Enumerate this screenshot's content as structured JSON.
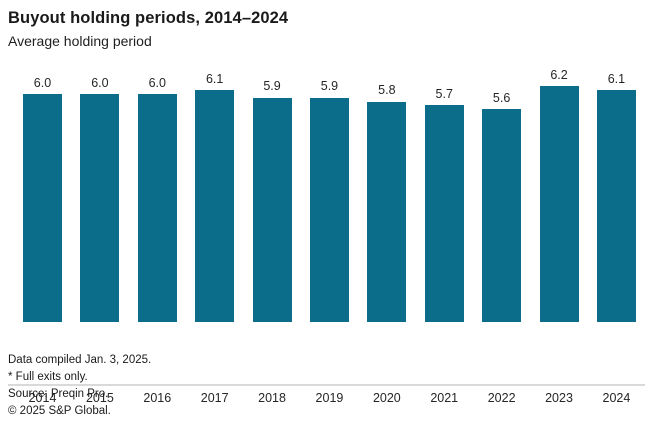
{
  "header": {
    "title": "Buyout holding periods, 2014–2024",
    "subtitle": "Average holding period"
  },
  "chart_data": {
    "type": "bar",
    "title": "Buyout holding periods, 2014–2024",
    "subtitle": "Average holding period",
    "categories": [
      "2014",
      "2015",
      "2016",
      "2017",
      "2018",
      "2019",
      "2020",
      "2021",
      "2022",
      "2023",
      "2024"
    ],
    "values": [
      6.0,
      6.0,
      6.0,
      6.1,
      5.9,
      5.9,
      5.8,
      5.7,
      5.6,
      6.2,
      6.1
    ],
    "value_labels": [
      "6.0",
      "6.0",
      "6.0",
      "6.1",
      "5.9",
      "5.9",
      "5.8",
      "5.7",
      "5.6",
      "6.2",
      "6.1"
    ],
    "xlabel": "",
    "ylabel": "",
    "ylim": [
      0,
      6.5
    ],
    "grid": false,
    "legend": false,
    "bar_color": "#0b6d89",
    "axis_line_color": "#d9d9d9"
  },
  "footer": {
    "lines": [
      "Data compiled Jan. 3, 2025.",
      "* Full exits only.",
      "Source: Preqin Pro.",
      "© 2025 S&P Global."
    ]
  }
}
